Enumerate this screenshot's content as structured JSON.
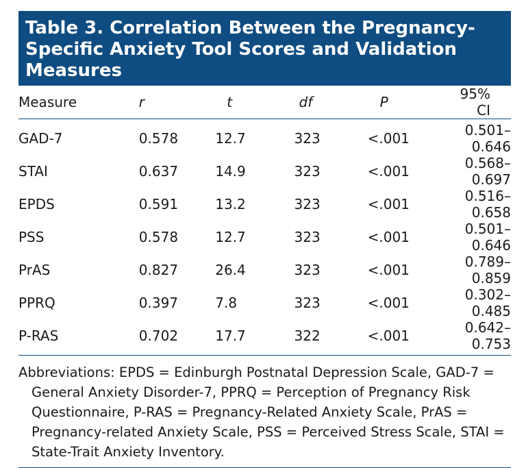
{
  "title": "Table 3. Correlation Between the Pregnancy-Specific Anxiety Tool Scores and Validation Measures",
  "headers": {
    "measure": "Measure",
    "r": "r",
    "t": "t",
    "df": "df",
    "p": "P",
    "ci": "95% CI"
  },
  "rows": [
    {
      "measure": "GAD-7",
      "r": "0.578",
      "t": "12.7",
      "df": "323",
      "p": "<.001",
      "ci": "0.501–0.646"
    },
    {
      "measure": "STAI",
      "r": "0.637",
      "t": "14.9",
      "df": "323",
      "p": "<.001",
      "ci": "0.568–0.697"
    },
    {
      "measure": "EPDS",
      "r": "0.591",
      "t": "13.2",
      "df": "323",
      "p": "<.001",
      "ci": "0.516–0.658"
    },
    {
      "measure": "PSS",
      "r": "0.578",
      "t": "12.7",
      "df": "323",
      "p": "<.001",
      "ci": "0.501–0.646"
    },
    {
      "measure": "PrAS",
      "r": "0.827",
      "t": "26.4",
      "df": "323",
      "p": "<.001",
      "ci": "0.789–0.859"
    },
    {
      "measure": "PPRQ",
      "r": "0.397",
      "t": "7.8",
      "df": "323",
      "p": "<.001",
      "ci": "0.302–0.485"
    },
    {
      "measure": "P-RAS",
      "r": "0.702",
      "t": "17.7",
      "df": "322",
      "p": "<.001",
      "ci": "0.642–0.753"
    }
  ],
  "footnote": "Abbreviations: EPDS = Edinburgh Postnatal Depression Scale, GAD-7 = General Anxiety Disorder-7, PPRQ = Perception of Pregnancy Risk Questionnaire, P-RAS = Pregnancy-Related Anxiety Scale, PrAS = Pregnancy-related Anxiety Scale, PSS = Perceived Stress Scale, STAI = State-Trait Anxiety Inventory.",
  "colors": {
    "header_bg": "#0f4c81",
    "rule": "#0f4c81"
  }
}
